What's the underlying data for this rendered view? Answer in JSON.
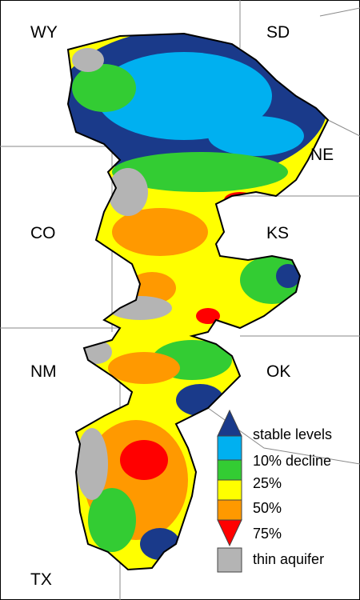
{
  "map": {
    "states": [
      "WY",
      "SD",
      "NE",
      "CO",
      "KS",
      "NM",
      "OK",
      "TX"
    ],
    "legend": [
      "stable levels",
      "10% decline",
      "25%",
      "50%",
      "75%",
      "thin aquifer"
    ]
  }
}
